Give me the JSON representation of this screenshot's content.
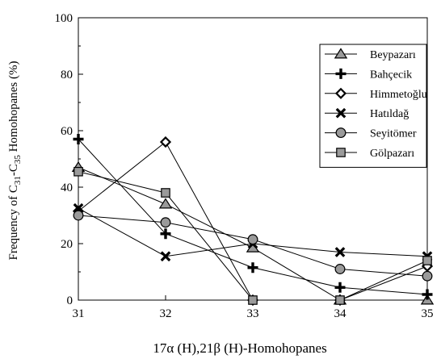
{
  "chart_data": {
    "type": "line",
    "xlabel": "17α (H),21β (H)-Homohopanes",
    "ylabel_parts": [
      "Frequency of C",
      "31",
      "-C",
      "35",
      " Homohopanes (%)"
    ],
    "x": [
      31,
      32,
      33,
      34,
      35
    ],
    "xlim": [
      31,
      35
    ],
    "ylim": [
      0,
      100
    ],
    "yticks": [
      0,
      20,
      40,
      60,
      80,
      100
    ],
    "grid": false,
    "legend_position": "top-right",
    "series": [
      {
        "name": "Beypazarı",
        "marker": "triangle",
        "values": [
          47,
          34,
          18.5,
          0,
          0
        ]
      },
      {
        "name": "Bahçecik",
        "marker": "plus",
        "values": [
          57,
          23.5,
          11.5,
          4.5,
          2
        ]
      },
      {
        "name": "Himmetoğlu",
        "marker": "diamond",
        "values": [
          31.5,
          56,
          0,
          0,
          12
        ]
      },
      {
        "name": "Hatıldağ",
        "marker": "x",
        "values": [
          32.5,
          15.5,
          20,
          17,
          15.5
        ]
      },
      {
        "name": "Seyitömer",
        "marker": "circle",
        "values": [
          30,
          27.5,
          21.5,
          11,
          8.5
        ]
      },
      {
        "name": "Gölpazarı",
        "marker": "square",
        "values": [
          45.5,
          38,
          0,
          0,
          14
        ]
      }
    ]
  },
  "colors": {
    "marker_fill": "#9a9a9a",
    "line": "#000000"
  }
}
